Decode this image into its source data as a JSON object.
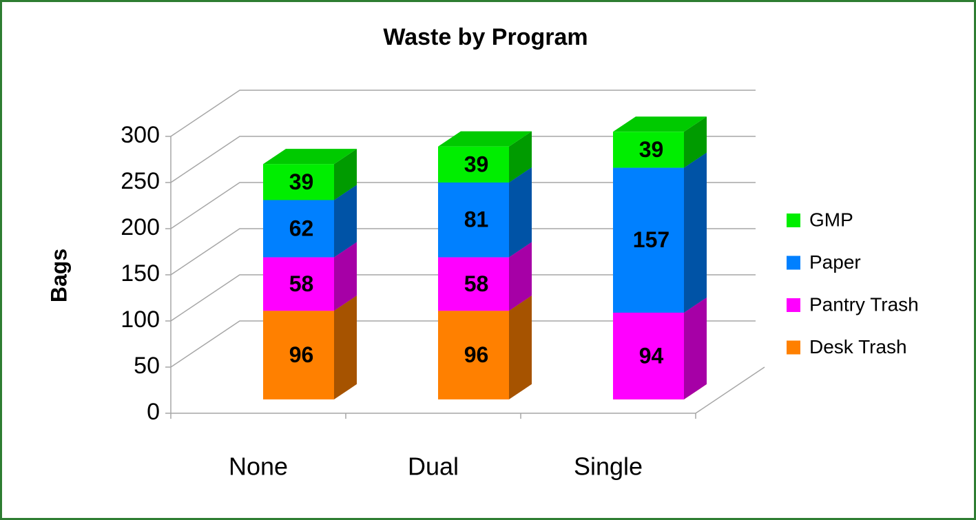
{
  "chart_data": {
    "type": "bar3d_stacked",
    "title": "Waste by Program",
    "y_label": "Bags",
    "categories": [
      "None",
      "Dual",
      "Single"
    ],
    "series": [
      {
        "name": "Desk Trash",
        "color": "#ff8000",
        "values": [
          96,
          96,
          0
        ]
      },
      {
        "name": "Pantry Trash",
        "color": "#ff00ff",
        "values": [
          58,
          58,
          94
        ]
      },
      {
        "name": "Paper",
        "color": "#0080ff",
        "values": [
          62,
          81,
          157
        ]
      },
      {
        "name": "GMP",
        "color": "#00ee00",
        "values": [
          39,
          39,
          39
        ]
      }
    ],
    "ylim": [
      0,
      300
    ],
    "yticks": [
      0,
      50,
      100,
      150,
      200,
      250,
      300
    ],
    "grid": true,
    "legend": "right"
  }
}
